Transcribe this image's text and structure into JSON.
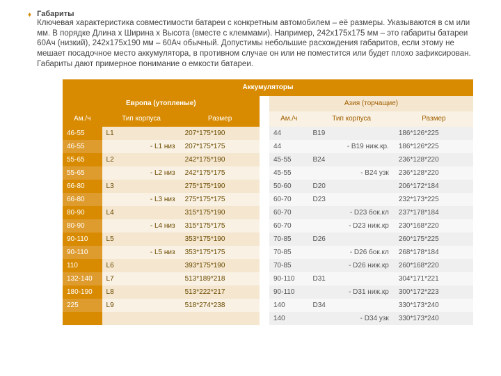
{
  "bullet": "♦",
  "para": {
    "title": "Габариты",
    "body": "Ключевая характеристика совместимости батареи с конкретным автомобилем – её размеры. Указываются в см или мм. В порядке Длина х Ширина х Высота (вместе с клеммами). Например, 242x175x175 мм – это габариты батареи 60Ач (низкий), 242x175x190 мм – 60Ач обычный. Допустимы небольшие расхождения габаритов, если этому не мешает посадочное место аккумулятора, в противном случае он или не поместится или будет плохо зафиксирован. Габариты дают примерное понимание о емкости батареи."
  },
  "table": {
    "main": "Аккумуляторы",
    "eu": "Европа (утопленые)",
    "asia": "Азия (торчащие)",
    "cols": {
      "amh": "Ам./ч",
      "type": "Тип корпуса",
      "size": "Размер"
    },
    "rows": [
      {
        "cls": "a",
        "e_am": "46-55",
        "e_tp": "L1",
        "e_sz": "207*175*190",
        "a_am": "44",
        "a_tp": "B19",
        "a_sz": "186*126*225",
        "e_r": false,
        "a_r": false
      },
      {
        "cls": "b",
        "e_am": "46-55",
        "e_tp": "- L1 низ",
        "e_sz": "207*175*175",
        "a_am": "44",
        "a_tp": "- B19 ниж.кр.",
        "a_sz": "186*126*225",
        "e_r": true,
        "a_r": true
      },
      {
        "cls": "a",
        "e_am": "55-65",
        "e_tp": "L2",
        "e_sz": "242*175*190",
        "a_am": "45-55",
        "a_tp": "B24",
        "a_sz": "236*128*220",
        "e_r": false,
        "a_r": false
      },
      {
        "cls": "b",
        "e_am": "55-65",
        "e_tp": "- L2 низ",
        "e_sz": "242*175*175",
        "a_am": "45-55",
        "a_tp": "- B24 узк",
        "a_sz": "236*128*220",
        "e_r": true,
        "a_r": true
      },
      {
        "cls": "a",
        "e_am": "66-80",
        "e_tp": "L3",
        "e_sz": "275*175*190",
        "a_am": "50-60",
        "a_tp": "D20",
        "a_sz": "206*172*184",
        "e_r": false,
        "a_r": false
      },
      {
        "cls": "b",
        "e_am": "66-80",
        "e_tp": "- L3 низ",
        "e_sz": "275*175*175",
        "a_am": "60-70",
        "a_tp": "D23",
        "a_sz": "232*173*225",
        "e_r": true,
        "a_r": false
      },
      {
        "cls": "a",
        "e_am": "80-90",
        "e_tp": "L4",
        "e_sz": "315*175*190",
        "a_am": "60-70",
        "a_tp": "- D23 бок.кл",
        "a_sz": "237*178*184",
        "e_r": false,
        "a_r": true
      },
      {
        "cls": "b",
        "e_am": "80-90",
        "e_tp": "- L4 низ",
        "e_sz": "315*175*175",
        "a_am": "60-70",
        "a_tp": "- D23 ниж.кр",
        "a_sz": "230*168*220",
        "e_r": true,
        "a_r": true
      },
      {
        "cls": "a",
        "e_am": "90-110",
        "e_tp": "L5",
        "e_sz": "353*175*190",
        "a_am": "70-85",
        "a_tp": "D26",
        "a_sz": "260*175*225",
        "e_r": false,
        "a_r": false
      },
      {
        "cls": "b",
        "e_am": "90-110",
        "e_tp": "- L5 низ",
        "e_sz": "353*175*175",
        "a_am": "70-85",
        "a_tp": "- D26 бок.кл",
        "a_sz": "268*178*184",
        "e_r": true,
        "a_r": true
      },
      {
        "cls": "a",
        "e_am": "110",
        "e_tp": "L6",
        "e_sz": "393*175*190",
        "a_am": "70-85",
        "a_tp": "- D26 ниж.кр",
        "a_sz": "260*168*220",
        "e_r": false,
        "a_r": true
      },
      {
        "cls": "b",
        "e_am": "132-140",
        "e_tp": "L7",
        "e_sz": "513*189*218",
        "a_am": "90-110",
        "a_tp": "D31",
        "a_sz": "304*171*221",
        "e_r": false,
        "a_r": false
      },
      {
        "cls": "a",
        "e_am": "180-190",
        "e_tp": "L8",
        "e_sz": "513*222*217",
        "a_am": "90-110",
        "a_tp": "- D31 ниж.кр",
        "a_sz": "300*172*223",
        "e_r": false,
        "a_r": true
      },
      {
        "cls": "b",
        "e_am": "225",
        "e_tp": "L9",
        "e_sz": "518*274*238",
        "a_am": "140",
        "a_tp": "D34",
        "a_sz": "330*173*240",
        "e_r": false,
        "a_r": false
      },
      {
        "cls": "a",
        "e_am": "",
        "e_tp": "",
        "e_sz": "",
        "a_am": "140",
        "a_tp": "- D34 узк",
        "a_sz": "330*173*240",
        "e_r": false,
        "a_r": true
      }
    ]
  },
  "colors": {
    "brand": "#d88a00",
    "brand2": "#de9b2e",
    "eu_a": "#f4e6cf",
    "eu_b": "#f9f1e3",
    "as_a": "#efefef",
    "as_b": "#f7f7f7"
  }
}
